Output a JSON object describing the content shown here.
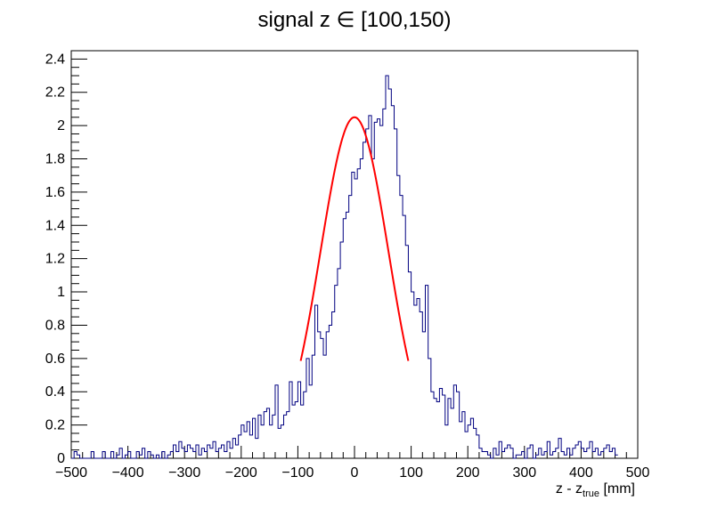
{
  "chart_data": {
    "type": "line",
    "title": "signal z ∈ [100,150)",
    "xlabel_main": "z - z",
    "xlabel_sub": "true",
    "xlabel_unit": " [mm]",
    "xlim": [
      -500,
      500
    ],
    "ylim": [
      0,
      2.45
    ],
    "grid": false,
    "x_ticks": [
      "−500",
      "−400",
      "−300",
      "−200",
      "−100",
      "0",
      "100",
      "200",
      "300",
      "400",
      "500"
    ],
    "y_ticks": [
      "0",
      "0.2",
      "0.4",
      "0.6",
      "0.8",
      "1",
      "1.2",
      "1.4",
      "1.6",
      "1.8",
      "2",
      "2.2",
      "2.4"
    ],
    "histogram": {
      "name": "histogram",
      "color": "#000080",
      "bin_width": 5,
      "bins_x_start": [
        -500,
        -495,
        -490,
        -485,
        -480,
        -475,
        -470,
        -465,
        -460,
        -455,
        -450,
        -445,
        -440,
        -435,
        -430,
        -425,
        -420,
        -415,
        -410,
        -405,
        -400,
        -395,
        -390,
        -385,
        -380,
        -375,
        -370,
        -365,
        -360,
        -355,
        -350,
        -345,
        -340,
        -335,
        -330,
        -325,
        -320,
        -315,
        -310,
        -305,
        -300,
        -295,
        -290,
        -285,
        -280,
        -275,
        -270,
        -265,
        -260,
        -255,
        -250,
        -245,
        -240,
        -235,
        -230,
        -225,
        -220,
        -215,
        -210,
        -205,
        -200,
        -195,
        -190,
        -185,
        -180,
        -175,
        -170,
        -165,
        -160,
        -155,
        -150,
        -145,
        -140,
        -135,
        -130,
        -125,
        -120,
        -115,
        -110,
        -105,
        -100,
        -95,
        -90,
        -85,
        -80,
        -75,
        -70,
        -65,
        -60,
        -55,
        -50,
        -45,
        -40,
        -35,
        -30,
        -25,
        -20,
        -15,
        -10,
        -5,
        0,
        5,
        10,
        15,
        20,
        25,
        30,
        35,
        40,
        45,
        50,
        55,
        60,
        65,
        70,
        75,
        80,
        85,
        90,
        95,
        100,
        105,
        110,
        115,
        120,
        125,
        130,
        135,
        140,
        145,
        150,
        155,
        160,
        165,
        170,
        175,
        180,
        185,
        190,
        195,
        200,
        205,
        210,
        215,
        220,
        225,
        230,
        235,
        240,
        245,
        250,
        255,
        260,
        265,
        270,
        275,
        280,
        285,
        290,
        295,
        300,
        305,
        310,
        315,
        320,
        325,
        330,
        335,
        340,
        345,
        350,
        355,
        360,
        365,
        370,
        375,
        380,
        385,
        390,
        395,
        400,
        405,
        410,
        415,
        420,
        425,
        430,
        435,
        440,
        445,
        450,
        455,
        460,
        465,
        470,
        475,
        480,
        485,
        490,
        495
      ],
      "values": [
        0,
        0.04,
        0.02,
        0,
        0,
        0,
        0,
        0.04,
        0,
        0,
        0,
        0.04,
        0,
        0,
        0.04,
        0,
        0.02,
        0.06,
        0,
        0.02,
        0.04,
        0,
        0,
        0.04,
        0.02,
        0.06,
        0,
        0.04,
        0.02,
        0,
        0.02,
        0,
        0.04,
        0,
        0.02,
        0.04,
        0.08,
        0.04,
        0.1,
        0.06,
        0.04,
        0.08,
        0.06,
        0.04,
        0.08,
        0.02,
        0.06,
        0.04,
        0.08,
        0.06,
        0.1,
        0.04,
        0.06,
        0.08,
        0.04,
        0.1,
        0.06,
        0.12,
        0.08,
        0.14,
        0.2,
        0.16,
        0.22,
        0.14,
        0.24,
        0.12,
        0.26,
        0.2,
        0.28,
        0.3,
        0.2,
        0.26,
        0.44,
        0.18,
        0.2,
        0.26,
        0.28,
        0.46,
        0.32,
        0.34,
        0.46,
        0.32,
        0.4,
        0.6,
        0.44,
        0.62,
        0.92,
        0.76,
        0.72,
        0.62,
        0.76,
        0.8,
        0.88,
        1.04,
        1.14,
        1.3,
        1.44,
        1.48,
        1.58,
        1.72,
        1.68,
        1.74,
        1.8,
        1.9,
        1.98,
        2.06,
        1.8,
        2.02,
        2.04,
        2.0,
        2.1,
        2.3,
        2.22,
        2.12,
        1.98,
        1.7,
        1.58,
        1.46,
        1.28,
        1.12,
        1.0,
        0.92,
        0.96,
        0.88,
        0.76,
        1.04,
        0.6,
        0.4,
        0.36,
        0.34,
        0.42,
        0.38,
        0.2,
        0.36,
        0.3,
        0.44,
        0.4,
        0.22,
        0.28,
        0.16,
        0.2,
        0.24,
        0.18,
        0.14,
        0.06,
        0.04,
        0.04,
        0.02,
        0,
        0.06,
        0.02,
        0.1,
        0.04,
        0.06,
        0.08,
        0.06,
        0,
        0.02,
        0.02,
        0.04,
        0,
        0.06,
        0.08,
        0,
        0.02,
        0.06,
        0.02,
        0.04,
        0.1,
        0.02,
        0.04,
        0.06,
        0.12,
        0.04,
        0.02,
        0.06,
        0.02,
        0.06,
        0.08,
        0.1,
        0.06,
        0.04,
        0.06,
        0.1,
        0.04,
        0.06,
        0.02,
        0.04,
        0.06,
        0.08,
        0.04,
        0.06,
        0.02
      ]
    },
    "fit": {
      "name": "fit",
      "color": "#ff0000",
      "x_range": [
        -95,
        95
      ],
      "mean": 0,
      "amplitude": 2.05,
      "sigma": 60
    }
  }
}
